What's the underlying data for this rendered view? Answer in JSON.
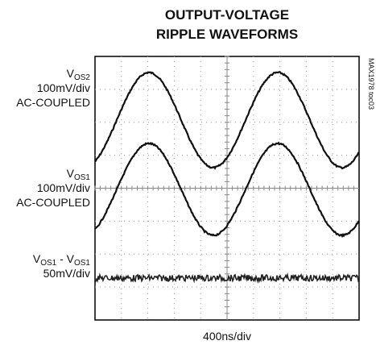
{
  "title": [
    "OUTPUT-VOLTAGE",
    "RIPPLE WAVEFORMS"
  ],
  "side_note": "MAX1978 toc03",
  "channels": [
    {
      "label": [
        {
          "main": "V",
          "sub": "OS2"
        }
      ],
      "scale": "100mV/div",
      "coupling": "AC-COUPLED"
    },
    {
      "label": [
        {
          "main": "V",
          "sub": "OS1"
        }
      ],
      "scale": "100mV/div",
      "coupling": "AC-COUPLED"
    },
    {
      "label": [
        {
          "main": "V",
          "sub": "OS1"
        },
        {
          "main": " - V",
          "sub": "OS1"
        }
      ],
      "scale": "50mV/div"
    }
  ],
  "time_base": "400ns/div"
}
